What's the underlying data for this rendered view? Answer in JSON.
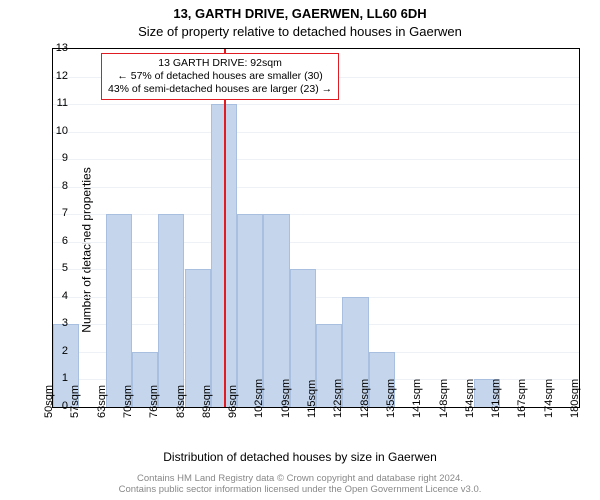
{
  "titles": {
    "main": "13, GARTH DRIVE, GAERWEN, LL60 6DH",
    "sub": "Size of property relative to detached houses in Gaerwen"
  },
  "axes": {
    "ylabel": "Number of detached properties",
    "xlabel": "Distribution of detached houses by size in Gaerwen",
    "ylim": [
      0,
      13
    ],
    "ytick_step": 1,
    "xtick_labels": [
      "50sqm",
      "57sqm",
      "63sqm",
      "70sqm",
      "76sqm",
      "83sqm",
      "89sqm",
      "96sqm",
      "102sqm",
      "109sqm",
      "115sqm",
      "122sqm",
      "128sqm",
      "135sqm",
      "141sqm",
      "148sqm",
      "154sqm",
      "161sqm",
      "167sqm",
      "174sqm",
      "180sqm"
    ]
  },
  "chart": {
    "type": "histogram",
    "values": [
      3,
      0,
      7,
      2,
      7,
      5,
      11,
      7,
      7,
      5,
      3,
      4,
      2,
      0,
      0,
      0,
      1,
      0,
      0,
      0
    ],
    "bar_color": "#c4d5ec",
    "bar_border": "#a9bfe0",
    "grid_color": "#eef1f5",
    "background_color": "#ffffff",
    "axis_color": "#000000",
    "bar_gap_ratio": 0.0,
    "label_fontsize": 12,
    "tick_fontsize": 11,
    "title_fontsize": 13
  },
  "marker": {
    "position_bin_boundary": 6.5,
    "color": "#e11b22"
  },
  "callout": {
    "line1": "13 GARTH DRIVE: 92sqm",
    "line2": "← 57% of detached houses are smaller (30)",
    "line3": "43% of semi-detached houses are larger (23) →",
    "border_color": "#e11b22",
    "background_color": "#ffffff"
  },
  "attribution": {
    "line1": "Contains HM Land Registry data © Crown copyright and database right 2024.",
    "line2": "Contains public sector information licensed under the Open Government Licence v3.0."
  }
}
